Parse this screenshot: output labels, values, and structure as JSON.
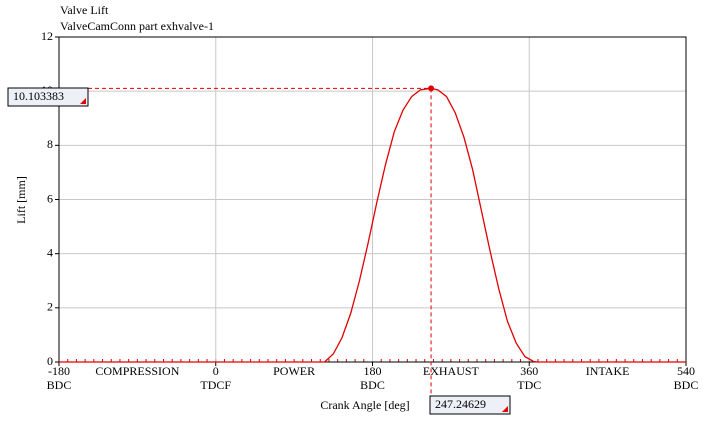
{
  "chart_data": {
    "type": "line",
    "title": "Valve Lift",
    "subtitle": "ValveCamConn part exhvalve-1",
    "x_label": "Crank Angle [deg]",
    "y_label": "Lift [mm]",
    "xlim": [
      -180,
      540
    ],
    "ylim": [
      0,
      12
    ],
    "xticks": [
      -180,
      0,
      180,
      360,
      540
    ],
    "xtick_sublabels": [
      "BDC",
      "TDCF",
      "BDC",
      "TDC",
      "BDC"
    ],
    "phases": [
      "COMPRESSION",
      "POWER",
      "EXHAUST",
      "INTAKE"
    ],
    "yticks": [
      0,
      2,
      4,
      6,
      8,
      10,
      12
    ],
    "grid": true,
    "series": [
      {
        "color": "#e00000",
        "x": [
          -180,
          125,
          135,
          145,
          155,
          165,
          175,
          185,
          195,
          205,
          215,
          225,
          235,
          247.24629,
          255,
          265,
          275,
          285,
          295,
          305,
          315,
          325,
          335,
          345,
          355,
          365,
          370,
          540
        ],
        "values": [
          0,
          0,
          0.3,
          0.9,
          1.8,
          3.0,
          4.4,
          5.9,
          7.3,
          8.5,
          9.3,
          9.8,
          10.05,
          10.103383,
          10.05,
          9.8,
          9.2,
          8.3,
          7.1,
          5.6,
          4.1,
          2.7,
          1.5,
          0.7,
          0.2,
          0.02,
          0,
          0
        ]
      }
    ],
    "cursor": {
      "x": 247.24629,
      "y": 10.103383
    }
  }
}
